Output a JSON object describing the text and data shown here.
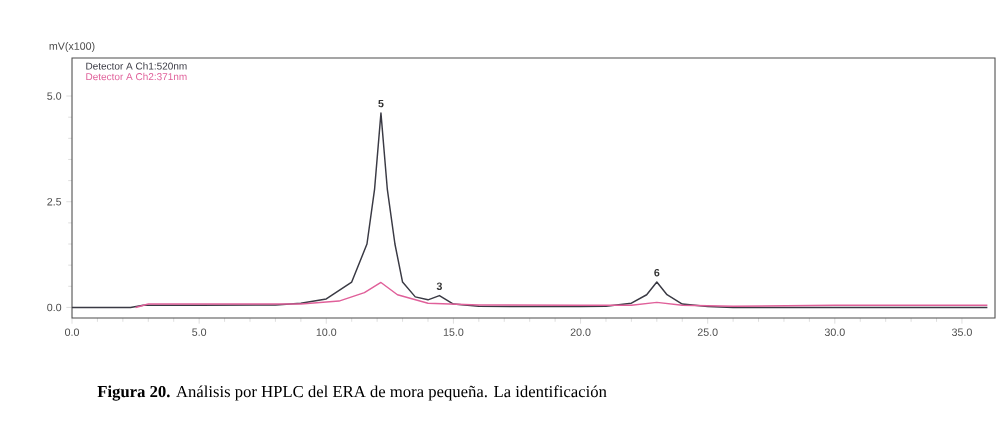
{
  "chart_data": {
    "type": "line",
    "ylabel": "mV(x100)",
    "annotations": [
      {
        "text": "5",
        "x": 12.15,
        "y": 4.6
      },
      {
        "text": "3",
        "x": 14.45,
        "y": 0.28
      },
      {
        "text": "6",
        "x": 23.0,
        "y": 0.6
      },
      "**Figura  20.** Análisis por HPLC del ERA de mora pequeña. La identificación"
    ],
    "series": [
      {
        "name": "Detector A Ch1:520nm",
        "color": "#3a3a44",
        "x": [
          0,
          2.3,
          2.8,
          5,
          8,
          9,
          10,
          11,
          11.6,
          11.9,
          12.15,
          12.4,
          12.7,
          13,
          13.5,
          14,
          14.45,
          15,
          16,
          18,
          20,
          21,
          22,
          22.6,
          23.0,
          23.4,
          24,
          25,
          26,
          30,
          36
        ],
        "values": [
          0,
          0,
          0.05,
          0.05,
          0.06,
          0.1,
          0.2,
          0.6,
          1.5,
          2.8,
          4.6,
          2.8,
          1.5,
          0.6,
          0.25,
          0.18,
          0.28,
          0.08,
          0.03,
          0.02,
          0.02,
          0.03,
          0.1,
          0.3,
          0.6,
          0.3,
          0.08,
          0.02,
          0,
          0,
          0
        ]
      },
      {
        "name": "Detector A Ch2:371nm",
        "color": "#e0609a",
        "x": [
          2.5,
          3,
          5,
          9,
          10.5,
          11.5,
          12.15,
          12.8,
          14,
          16,
          20,
          22,
          23,
          24,
          26,
          30,
          36
        ],
        "values": [
          0,
          0.08,
          0.08,
          0.08,
          0.15,
          0.35,
          0.59,
          0.3,
          0.1,
          0.06,
          0.05,
          0.05,
          0.12,
          0.05,
          0.03,
          0.05,
          0.05
        ]
      }
    ],
    "xlim": [
      0,
      36.3
    ],
    "ylim": [
      -0.25,
      5.9
    ],
    "xticks": [
      {
        "value": 0,
        "label": "0.0"
      },
      {
        "value": 5,
        "label": "5.0"
      },
      {
        "value": 10,
        "label": "10.0"
      },
      {
        "value": 15,
        "label": "15.0"
      },
      {
        "value": 20,
        "label": "20.0"
      },
      {
        "value": 25,
        "label": "25.0"
      },
      {
        "value": 30,
        "label": "30.0"
      },
      {
        "value": 35,
        "label": "35.0"
      }
    ],
    "yticks": [
      {
        "value": 0,
        "label": "0.0"
      },
      {
        "value": 2.5,
        "label": "2.5"
      },
      {
        "value": 5,
        "label": "5.0"
      }
    ],
    "legend": "top left",
    "grid": false,
    "marker": "none",
    "line_style": "solid"
  }
}
